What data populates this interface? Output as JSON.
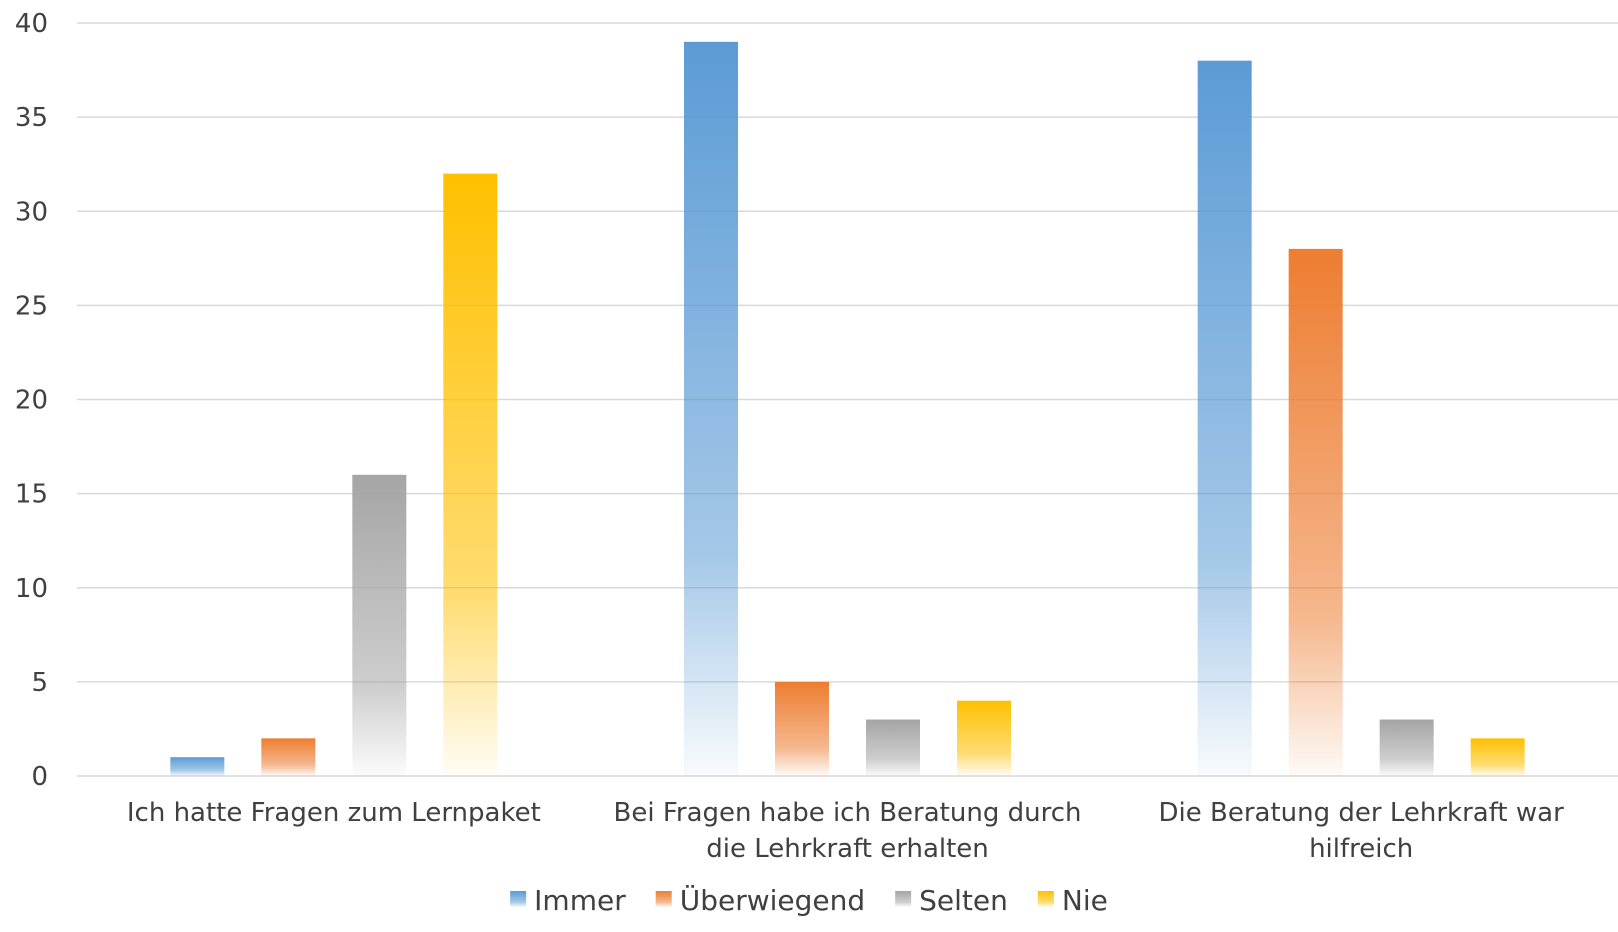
{
  "chart_data": {
    "type": "bar",
    "categories": [
      [
        "Ich hatte Fragen zum Lernpaket"
      ],
      [
        "Bei Fragen habe ich Beratung durch",
        "die Lehrkraft erhalten"
      ],
      [
        "Die Beratung der Lehrkraft war",
        "hilfreich"
      ]
    ],
    "series": [
      {
        "name": "Immer",
        "color": "#5b9bd5",
        "values": [
          1,
          39,
          38
        ]
      },
      {
        "name": "Überwiegend",
        "color": "#ed7d31",
        "values": [
          2,
          5,
          28
        ]
      },
      {
        "name": "Selten",
        "color": "#a5a5a5",
        "values": [
          16,
          3,
          3
        ]
      },
      {
        "name": "Nie",
        "color": "#ffc000",
        "values": [
          32,
          4,
          2
        ]
      }
    ],
    "ylim": [
      0,
      40
    ],
    "yticks": [
      "0",
      "5",
      "10",
      "15",
      "20",
      "25",
      "30",
      "35",
      "40"
    ],
    "grid": true,
    "legend_position": "bottom",
    "title": "",
    "xlabel": "",
    "ylabel": ""
  }
}
